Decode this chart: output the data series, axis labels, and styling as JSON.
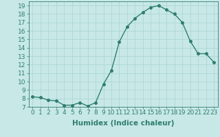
{
  "x": [
    0,
    1,
    2,
    3,
    4,
    5,
    6,
    7,
    8,
    9,
    10,
    11,
    12,
    13,
    14,
    15,
    16,
    17,
    18,
    19,
    20,
    21,
    22,
    23
  ],
  "y": [
    8.2,
    8.1,
    7.8,
    7.7,
    7.2,
    7.2,
    7.5,
    7.1,
    7.5,
    9.7,
    11.3,
    14.7,
    16.5,
    17.5,
    18.2,
    18.8,
    19.0,
    18.5,
    18.0,
    17.0,
    14.8,
    13.3,
    13.3,
    12.3
  ],
  "line_color": "#2e7d6e",
  "marker": "o",
  "marker_size": 2.5,
  "bg_color": "#c8e8e8",
  "grid_color": "#b0d8d8",
  "xlabel": "Humidex (Indice chaleur)",
  "ylabel": "",
  "xlim": [
    -0.5,
    23.5
  ],
  "ylim": [
    7,
    19.5
  ],
  "xticks": [
    0,
    1,
    2,
    3,
    4,
    5,
    6,
    7,
    8,
    9,
    10,
    11,
    12,
    13,
    14,
    15,
    16,
    17,
    18,
    19,
    20,
    21,
    22,
    23
  ],
  "yticks": [
    7,
    8,
    9,
    10,
    11,
    12,
    13,
    14,
    15,
    16,
    17,
    18,
    19
  ],
  "tick_label_size": 6.5,
  "xlabel_size": 7.5,
  "line_width": 1.0
}
